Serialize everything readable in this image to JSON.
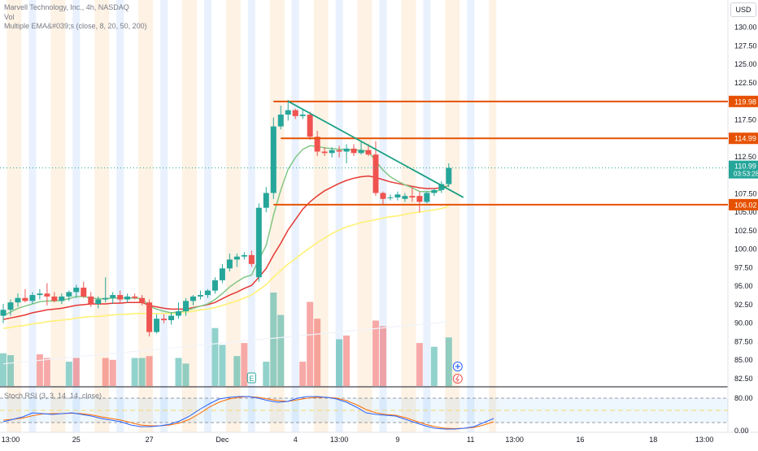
{
  "header": {
    "symbol_title": "Marvell Technology, Inc., 4h, NASDAQ",
    "vol_label": "Vol",
    "ema_label": "Multiple EMA&#039;s (close, 8, 20, 50, 200)",
    "currency": "USD"
  },
  "stoch": {
    "label": "Stoch RSI (3, 3, 14, 14, close)",
    "ticks": [
      "80.00",
      "0.00"
    ],
    "k_values": [
      22,
      28,
      34,
      44,
      42,
      40,
      42,
      44,
      40,
      36,
      30,
      26,
      22,
      14,
      10,
      10,
      12,
      16,
      24,
      36,
      52,
      66,
      78,
      82,
      84,
      84,
      80,
      74,
      70,
      72,
      80,
      84,
      84,
      82,
      78,
      70,
      58,
      44,
      40,
      38,
      36,
      28,
      20,
      12,
      6,
      4,
      4,
      6,
      10,
      20,
      30
    ],
    "d_values": [
      26,
      28,
      31,
      37,
      41,
      42,
      42,
      43,
      42,
      39,
      34,
      30,
      26,
      20,
      14,
      12,
      12,
      14,
      19,
      28,
      42,
      58,
      70,
      78,
      82,
      84,
      82,
      78,
      74,
      72,
      76,
      80,
      82,
      82,
      80,
      74,
      64,
      52,
      44,
      40,
      38,
      32,
      24,
      16,
      10,
      6,
      5,
      6,
      8,
      14,
      22
    ]
  },
  "price_axis": {
    "ticks": [
      "130.00",
      "127.50",
      "125.00",
      "122.50",
      "120.00",
      "117.50",
      "115.00",
      "112.50",
      "110.00",
      "107.50",
      "105.00",
      "102.50",
      "100.00",
      "97.50",
      "95.00",
      "92.50",
      "90.00",
      "87.50",
      "85.00",
      "82.50"
    ],
    "current_price": "110.99",
    "countdown": "03:53:28",
    "current_color": "#26a69a"
  },
  "levels": [
    {
      "label": "119.98",
      "value": 119.98,
      "x_start": 37
    },
    {
      "label": "114.99",
      "value": 114.99,
      "x_start": 38
    },
    {
      "label": "106.02",
      "value": 106.02,
      "x_start": 37
    }
  ],
  "trendline": {
    "from": [
      39,
      120.0
    ],
    "to": [
      63,
      107.0
    ],
    "color": "#1ba084"
  },
  "time_axis": [
    {
      "label": "13:00",
      "bar": 1
    },
    {
      "label": "25",
      "bar": 10
    },
    {
      "label": "27",
      "bar": 20
    },
    {
      "label": "Dec",
      "bar": 30
    },
    {
      "label": "4",
      "bar": 40
    },
    {
      "label": "13:00",
      "bar": 46
    },
    {
      "label": "9",
      "bar": 54
    },
    {
      "label": "11",
      "bar": 64
    },
    {
      "label": "13:00",
      "bar": 70
    },
    {
      "label": "16",
      "bar": 79
    },
    {
      "label": "18",
      "bar": 89
    },
    {
      "label": "13:00",
      "bar": 96
    }
  ],
  "chart_data": {
    "type": "candlestick",
    "title": "Marvell Technology, Inc., 4h, NASDAQ",
    "ylim": [
      81.5,
      131.5
    ],
    "colors": {
      "up": "#26a69a",
      "down": "#ef5350",
      "ema8": "#81c784",
      "ema20": "#e53935",
      "ema50": "#fff176",
      "ema200": "#ffffff"
    },
    "candles": [
      {
        "o": 91.0,
        "h": 92.6,
        "l": 90.0,
        "c": 91.8
      },
      {
        "o": 91.8,
        "h": 93.2,
        "l": 91.0,
        "c": 92.8
      },
      {
        "o": 92.8,
        "h": 94.0,
        "l": 92.2,
        "c": 93.4
      },
      {
        "o": 93.4,
        "h": 94.6,
        "l": 92.8,
        "c": 93.0
      },
      {
        "o": 93.0,
        "h": 94.2,
        "l": 92.6,
        "c": 93.8
      },
      {
        "o": 93.8,
        "h": 94.6,
        "l": 93.2,
        "c": 94.0
      },
      {
        "o": 94.0,
        "h": 95.4,
        "l": 92.4,
        "c": 93.6
      },
      {
        "o": 93.6,
        "h": 94.2,
        "l": 92.8,
        "c": 93.0
      },
      {
        "o": 93.0,
        "h": 94.0,
        "l": 92.6,
        "c": 93.6
      },
      {
        "o": 93.6,
        "h": 94.4,
        "l": 93.0,
        "c": 94.2
      },
      {
        "o": 94.2,
        "h": 95.2,
        "l": 93.4,
        "c": 94.8
      },
      {
        "o": 94.8,
        "h": 95.6,
        "l": 93.4,
        "c": 93.6
      },
      {
        "o": 93.6,
        "h": 94.2,
        "l": 92.2,
        "c": 92.6
      },
      {
        "o": 92.6,
        "h": 93.6,
        "l": 92.0,
        "c": 93.2
      },
      {
        "o": 93.2,
        "h": 96.2,
        "l": 92.8,
        "c": 93.4
      },
      {
        "o": 93.4,
        "h": 94.2,
        "l": 92.6,
        "c": 93.8
      },
      {
        "o": 93.8,
        "h": 94.4,
        "l": 92.6,
        "c": 93.2
      },
      {
        "o": 93.2,
        "h": 94.0,
        "l": 92.8,
        "c": 93.6
      },
      {
        "o": 93.6,
        "h": 94.0,
        "l": 93.2,
        "c": 93.4
      },
      {
        "o": 93.4,
        "h": 93.8,
        "l": 92.4,
        "c": 92.8
      },
      {
        "o": 92.8,
        "h": 93.2,
        "l": 88.2,
        "c": 88.8
      },
      {
        "o": 88.8,
        "h": 91.2,
        "l": 88.6,
        "c": 90.6
      },
      {
        "o": 90.6,
        "h": 91.2,
        "l": 90.0,
        "c": 90.4
      },
      {
        "o": 90.4,
        "h": 91.4,
        "l": 89.8,
        "c": 91.0
      },
      {
        "o": 91.0,
        "h": 92.8,
        "l": 90.6,
        "c": 91.6
      },
      {
        "o": 91.6,
        "h": 93.4,
        "l": 91.0,
        "c": 93.0
      },
      {
        "o": 93.0,
        "h": 93.8,
        "l": 92.4,
        "c": 93.6
      },
      {
        "o": 93.6,
        "h": 94.4,
        "l": 93.2,
        "c": 93.8
      },
      {
        "o": 93.8,
        "h": 94.6,
        "l": 93.4,
        "c": 94.4
      },
      {
        "o": 94.4,
        "h": 96.2,
        "l": 94.0,
        "c": 95.8
      },
      {
        "o": 95.8,
        "h": 98.0,
        "l": 95.4,
        "c": 97.4
      },
      {
        "o": 97.4,
        "h": 99.4,
        "l": 97.0,
        "c": 98.6
      },
      {
        "o": 98.6,
        "h": 99.4,
        "l": 97.6,
        "c": 99.0
      },
      {
        "o": 99.0,
        "h": 99.6,
        "l": 98.6,
        "c": 99.2
      },
      {
        "o": 99.2,
        "h": 99.8,
        "l": 97.6,
        "c": 98.0
      },
      {
        "o": 96.2,
        "h": 106.2,
        "l": 95.6,
        "c": 105.6
      },
      {
        "o": 105.6,
        "h": 108.4,
        "l": 105.0,
        "c": 107.6
      },
      {
        "o": 107.6,
        "h": 117.8,
        "l": 106.8,
        "c": 116.6
      },
      {
        "o": 116.6,
        "h": 119.4,
        "l": 116.2,
        "c": 118.2
      },
      {
        "o": 118.2,
        "h": 120.2,
        "l": 117.4,
        "c": 118.8
      },
      {
        "o": 118.8,
        "h": 119.0,
        "l": 117.6,
        "c": 118.0
      },
      {
        "o": 118.0,
        "h": 119.0,
        "l": 117.6,
        "c": 118.2
      },
      {
        "o": 118.2,
        "h": 118.6,
        "l": 114.8,
        "c": 115.2
      },
      {
        "o": 115.2,
        "h": 116.0,
        "l": 112.6,
        "c": 113.2
      },
      {
        "o": 113.2,
        "h": 113.8,
        "l": 112.6,
        "c": 113.0
      },
      {
        "o": 113.0,
        "h": 113.8,
        "l": 112.4,
        "c": 113.4
      },
      {
        "o": 113.4,
        "h": 114.0,
        "l": 112.4,
        "c": 113.2
      },
      {
        "o": 113.2,
        "h": 114.2,
        "l": 111.6,
        "c": 113.6
      },
      {
        "o": 113.6,
        "h": 114.2,
        "l": 112.6,
        "c": 113.0
      },
      {
        "o": 113.0,
        "h": 114.6,
        "l": 112.8,
        "c": 113.4
      },
      {
        "o": 113.4,
        "h": 114.2,
        "l": 112.6,
        "c": 112.8
      },
      {
        "o": 112.8,
        "h": 114.6,
        "l": 107.2,
        "c": 107.6
      },
      {
        "o": 107.6,
        "h": 107.8,
        "l": 106.0,
        "c": 106.8
      },
      {
        "o": 107.0,
        "h": 107.4,
        "l": 106.6,
        "c": 107.0
      },
      {
        "o": 107.0,
        "h": 107.8,
        "l": 106.6,
        "c": 107.4
      },
      {
        "o": 106.8,
        "h": 107.6,
        "l": 106.4,
        "c": 107.2
      },
      {
        "o": 107.2,
        "h": 108.4,
        "l": 106.4,
        "c": 107.0
      },
      {
        "o": 107.2,
        "h": 107.8,
        "l": 105.0,
        "c": 106.4
      },
      {
        "o": 106.4,
        "h": 107.8,
        "l": 106.2,
        "c": 107.6
      },
      {
        "o": 107.6,
        "h": 108.2,
        "l": 107.2,
        "c": 108.0
      },
      {
        "o": 108.0,
        "h": 109.2,
        "l": 107.6,
        "c": 108.8
      },
      {
        "o": 108.8,
        "h": 111.6,
        "l": 108.4,
        "c": 110.99
      }
    ],
    "volume": [
      {
        "v": 0.35,
        "up": true
      },
      {
        "v": 0.33,
        "up": true
      },
      {
        "v": 0.0,
        "up": true
      },
      {
        "v": 0.0,
        "up": true
      },
      {
        "v": 0.0,
        "up": true
      },
      {
        "v": 0.34,
        "up": false
      },
      {
        "v": 0.3,
        "up": false
      },
      {
        "v": 0.0,
        "up": true
      },
      {
        "v": 0.0,
        "up": true
      },
      {
        "v": 0.26,
        "up": true
      },
      {
        "v": 0.3,
        "up": false
      },
      {
        "v": 0.0,
        "up": true
      },
      {
        "v": 0.0,
        "up": true
      },
      {
        "v": 0.0,
        "up": true
      },
      {
        "v": 0.3,
        "up": false
      },
      {
        "v": 0.28,
        "up": false
      },
      {
        "v": 0.0,
        "up": true
      },
      {
        "v": 0.0,
        "up": true
      },
      {
        "v": 0.3,
        "up": true
      },
      {
        "v": 0.3,
        "up": true
      },
      {
        "v": 0.32,
        "up": false
      },
      {
        "v": 0.0,
        "up": true
      },
      {
        "v": 0.0,
        "up": true
      },
      {
        "v": 0.0,
        "up": true
      },
      {
        "v": 0.3,
        "up": true
      },
      {
        "v": 0.24,
        "up": true
      },
      {
        "v": 0.0,
        "up": true
      },
      {
        "v": 0.0,
        "up": true
      },
      {
        "v": 0.0,
        "up": true
      },
      {
        "v": 0.62,
        "up": true
      },
      {
        "v": 0.44,
        "up": true
      },
      {
        "v": 0.0,
        "up": true
      },
      {
        "v": 0.32,
        "up": true
      },
      {
        "v": 0.46,
        "up": false
      },
      {
        "v": 0.0,
        "up": true
      },
      {
        "v": 0.0,
        "up": true
      },
      {
        "v": 0.26,
        "up": true
      },
      {
        "v": 1.0,
        "up": true
      },
      {
        "v": 0.76,
        "up": true
      },
      {
        "v": 0.0,
        "up": true
      },
      {
        "v": 0.0,
        "up": true
      },
      {
        "v": 0.26,
        "up": false
      },
      {
        "v": 0.9,
        "up": false
      },
      {
        "v": 0.72,
        "up": false
      },
      {
        "v": 0.0,
        "up": true
      },
      {
        "v": 0.0,
        "up": true
      },
      {
        "v": 0.5,
        "up": true
      },
      {
        "v": 0.54,
        "up": false
      },
      {
        "v": 0.0,
        "up": true
      },
      {
        "v": 0.0,
        "up": true
      },
      {
        "v": 0.0,
        "up": true
      },
      {
        "v": 0.7,
        "up": false
      },
      {
        "v": 0.64,
        "up": false
      },
      {
        "v": 0.0,
        "up": true
      },
      {
        "v": 0.0,
        "up": true
      },
      {
        "v": 0.0,
        "up": true
      },
      {
        "v": 0.0,
        "up": true
      },
      {
        "v": 0.46,
        "up": false
      },
      {
        "v": 0.0,
        "up": true
      },
      {
        "v": 0.42,
        "up": true
      },
      {
        "v": 0.0,
        "up": true
      },
      {
        "v": 0.52,
        "up": true
      }
    ],
    "ema8": [
      91.0,
      91.5,
      92.0,
      92.3,
      92.6,
      92.9,
      93.0,
      93.0,
      93.1,
      93.3,
      93.6,
      93.6,
      93.4,
      93.3,
      93.3,
      93.4,
      93.4,
      93.4,
      93.4,
      93.3,
      92.3,
      91.9,
      91.6,
      91.4,
      91.5,
      91.7,
      92.0,
      92.3,
      92.6,
      93.2,
      94.0,
      94.9,
      95.6,
      96.2,
      96.5,
      98.6,
      100.5,
      104.6,
      108.0,
      110.8,
      112.4,
      113.5,
      114.0,
      113.9,
      113.7,
      113.6,
      113.5,
      113.5,
      113.4,
      113.4,
      113.2,
      111.9,
      110.7,
      109.8,
      109.2,
      108.7,
      108.3,
      107.8,
      107.8,
      107.8,
      108.0,
      108.7
    ],
    "ema20": [
      90.5,
      90.7,
      90.9,
      91.1,
      91.4,
      91.6,
      91.8,
      91.9,
      92.0,
      92.2,
      92.4,
      92.5,
      92.6,
      92.6,
      92.6,
      92.7,
      92.7,
      92.8,
      92.8,
      92.8,
      92.4,
      92.2,
      92.0,
      91.9,
      91.9,
      91.9,
      92.1,
      92.3,
      92.5,
      92.8,
      93.3,
      93.8,
      94.2,
      94.7,
      95.1,
      96.2,
      97.4,
      99.2,
      100.8,
      102.6,
      104.0,
      105.4,
      106.4,
      107.2,
      107.9,
      108.4,
      108.9,
      109.3,
      109.6,
      109.8,
      109.9,
      109.7,
      109.4,
      109.1,
      108.9,
      108.7,
      108.5,
      108.3,
      108.2,
      108.2,
      108.3,
      108.6
    ],
    "ema50": [
      89.3,
      89.4,
      89.6,
      89.7,
      89.9,
      90.0,
      90.2,
      90.3,
      90.4,
      90.5,
      90.7,
      90.8,
      90.9,
      90.9,
      91.0,
      91.1,
      91.2,
      91.2,
      91.3,
      91.3,
      91.3,
      91.3,
      91.3,
      91.3,
      91.4,
      91.5,
      91.6,
      91.8,
      91.9,
      92.1,
      92.4,
      92.7,
      93.0,
      93.4,
      93.8,
      94.5,
      95.2,
      96.2,
      97.1,
      98.0,
      98.7,
      99.5,
      100.2,
      100.9,
      101.5,
      102.1,
      102.6,
      103.0,
      103.3,
      103.6,
      103.8,
      104.0,
      104.2,
      104.4,
      104.5,
      104.7,
      104.9,
      105.0,
      105.2,
      105.3,
      105.5,
      105.8
    ]
  }
}
